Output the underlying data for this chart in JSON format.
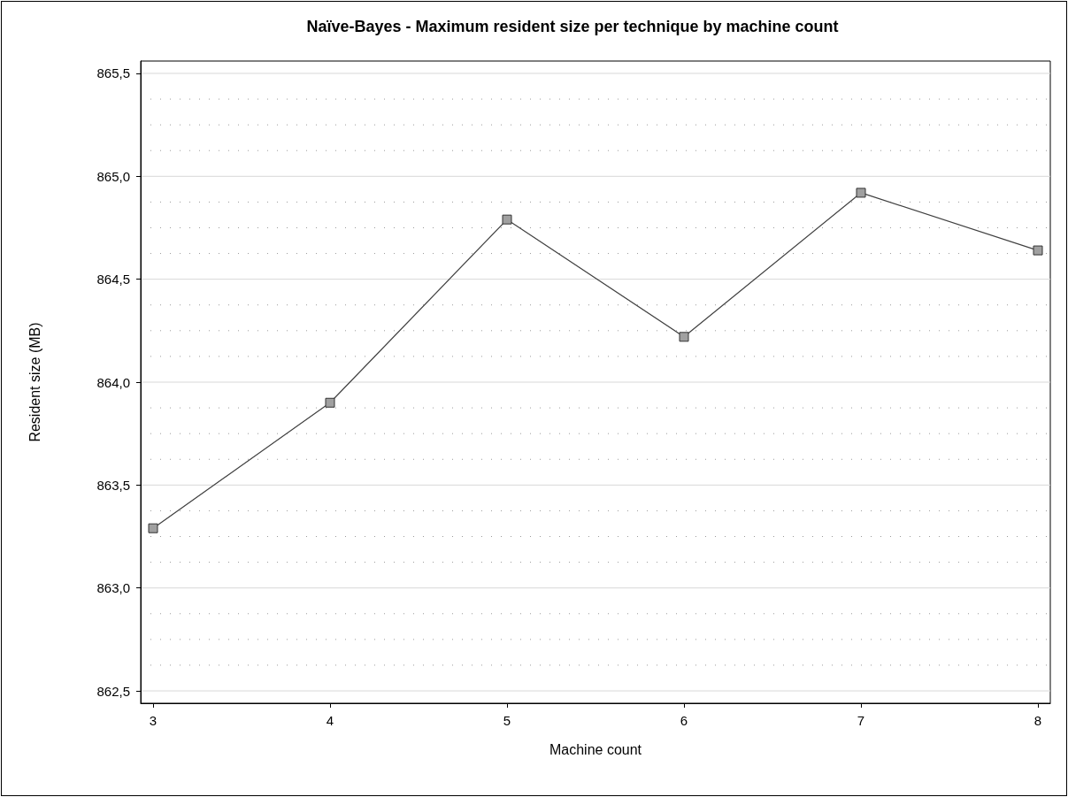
{
  "chart_data": {
    "type": "line",
    "title": "Naïve-Bayes - Maximum resident size per technique by machine count",
    "xlabel": "Machine count",
    "ylabel": "Resident size (MB)",
    "x": [
      3,
      4,
      5,
      6,
      7,
      8
    ],
    "series": [
      {
        "color": "#404040",
        "values": [
          863.29,
          863.9,
          864.79,
          864.22,
          864.92,
          864.64
        ]
      }
    ],
    "xlim": [
      2.93,
      8.07
    ],
    "xticks": [
      3,
      4,
      5,
      6,
      7,
      8
    ],
    "ylim": [
      862.44,
      865.56
    ],
    "yticks": [
      {
        "value": 862.5,
        "label": "862,5"
      },
      {
        "value": 863,
        "label": "863,0"
      },
      {
        "value": 863.5,
        "label": "863,5"
      },
      {
        "value": 864,
        "label": "864,0"
      },
      {
        "value": 864.5,
        "label": "864,5"
      },
      {
        "value": 865,
        "label": "865,0"
      },
      {
        "value": 865.5,
        "label": "865,5"
      }
    ],
    "grid": "y",
    "marker": "square",
    "line_style": "solid"
  }
}
